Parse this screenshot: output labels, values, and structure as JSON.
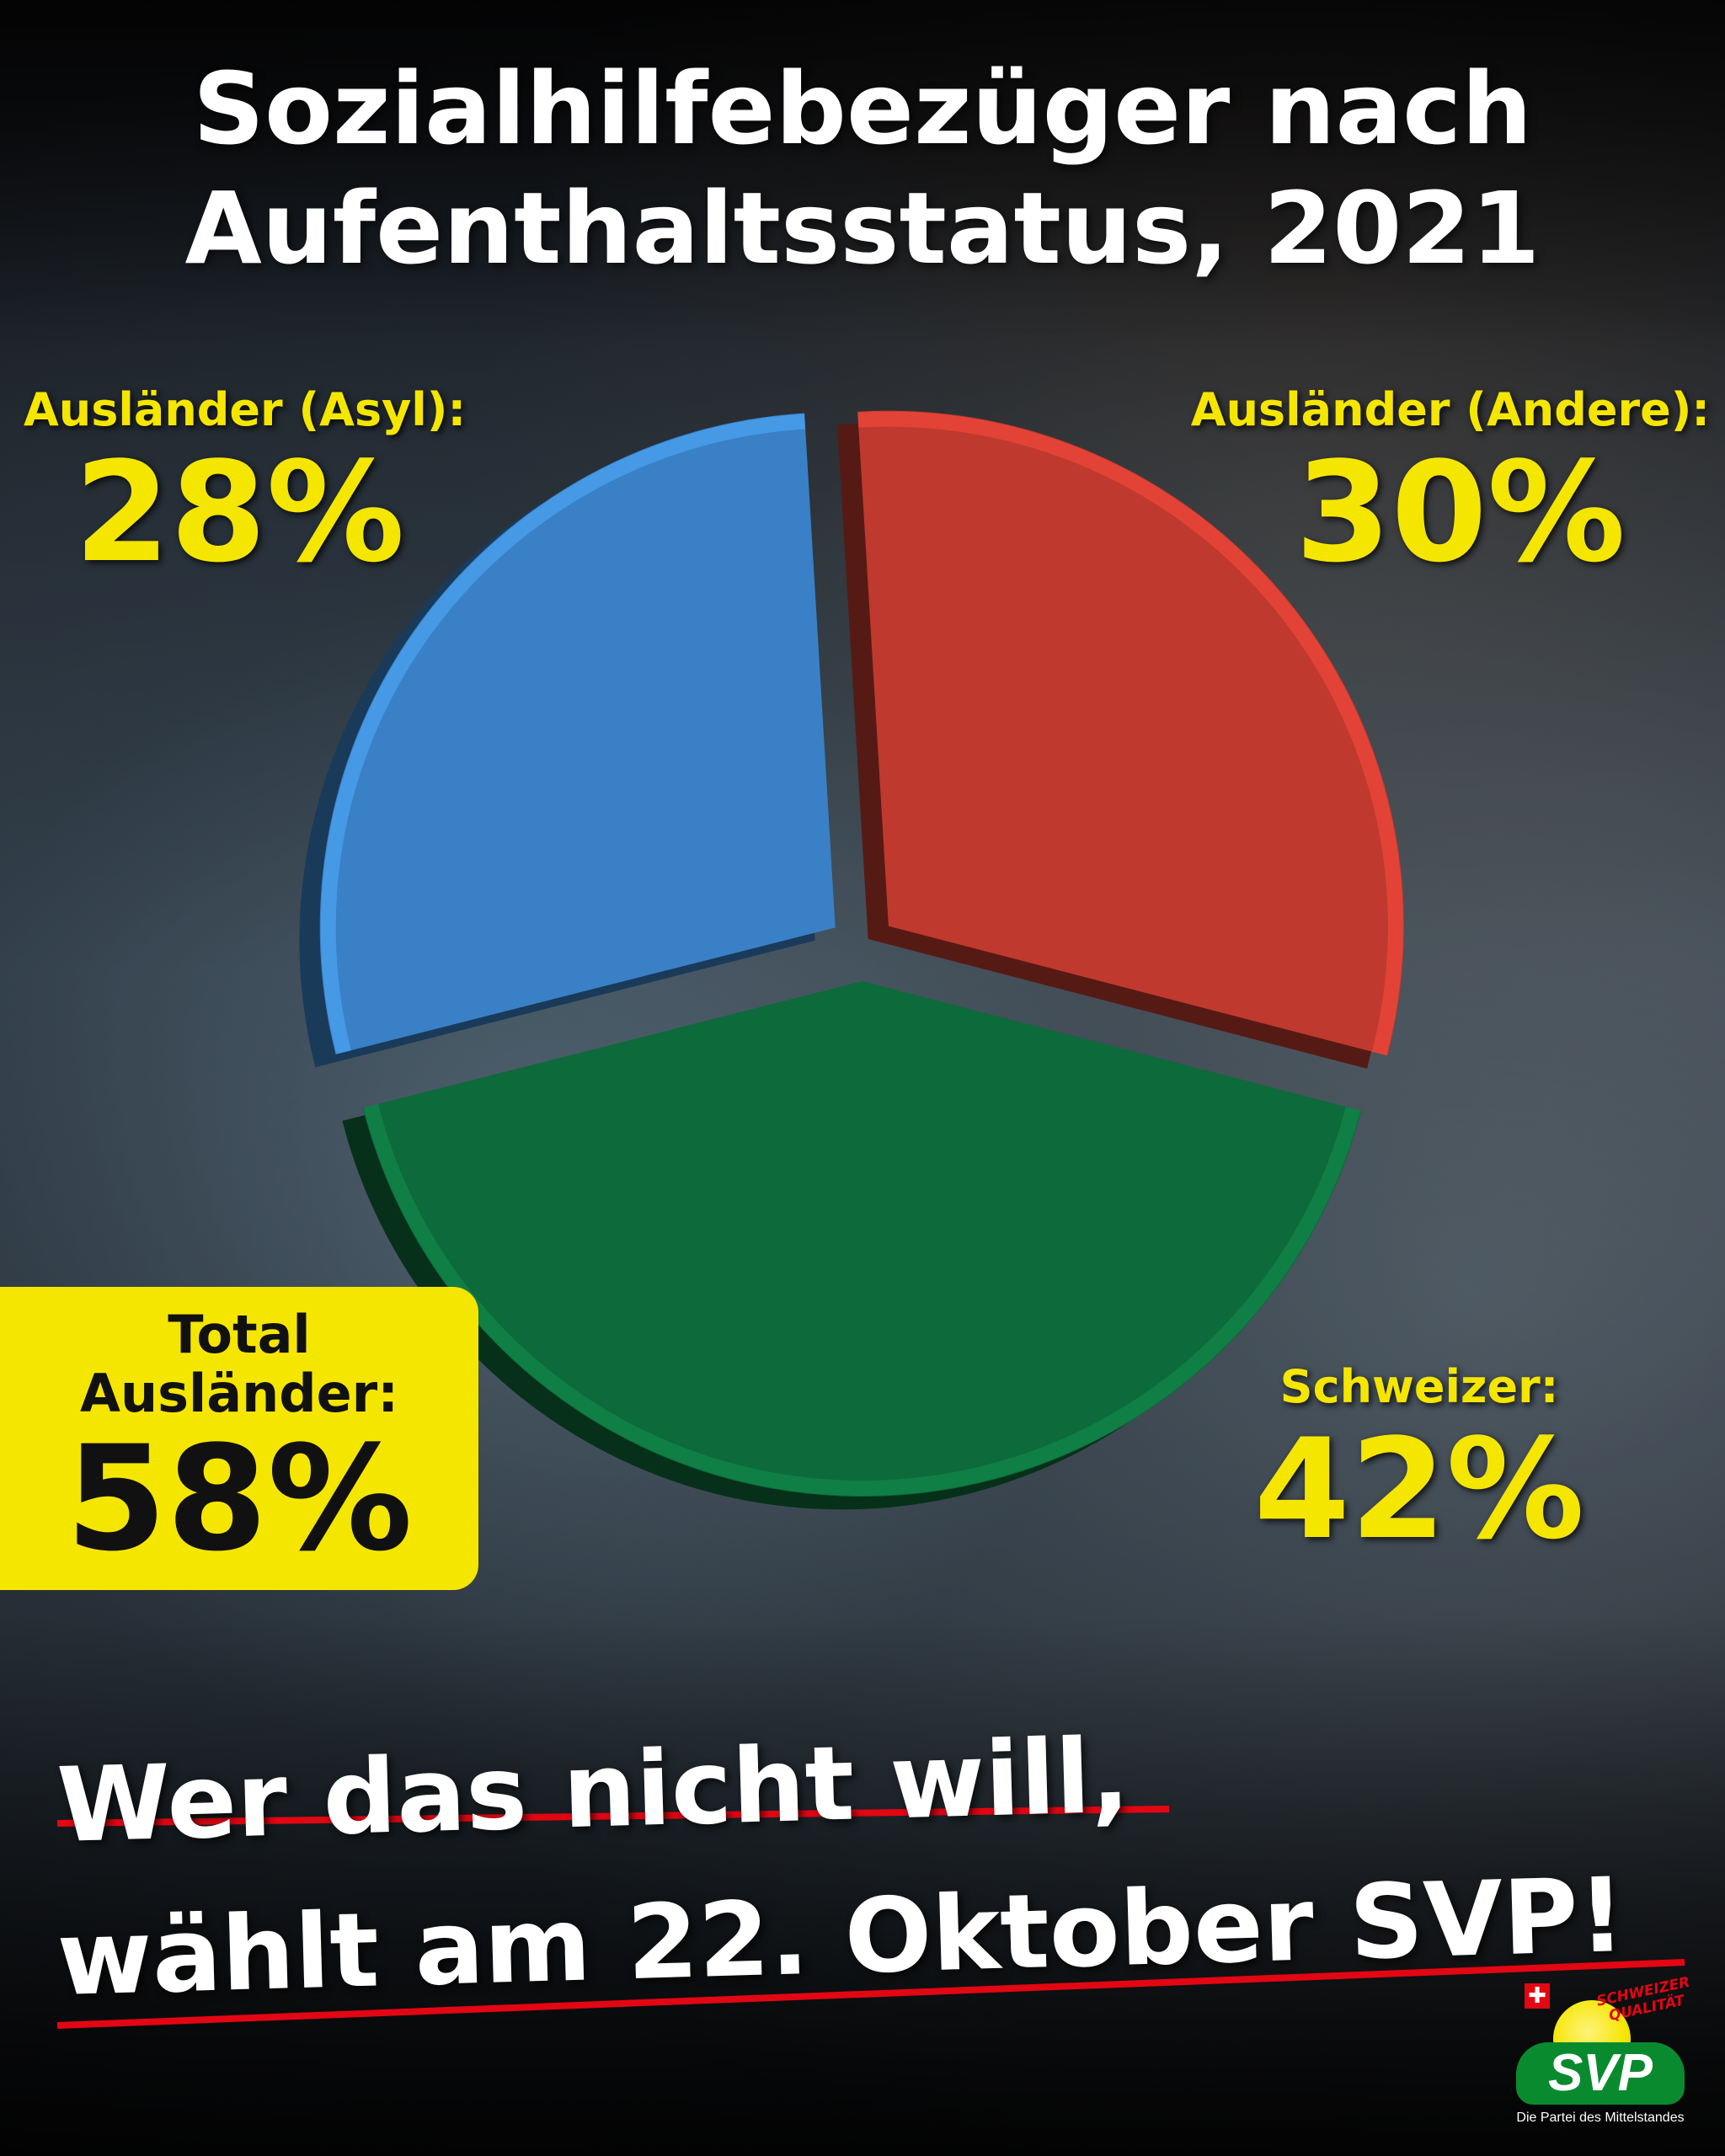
{
  "title": {
    "line1": "Sozialhilfebezüger nach",
    "line2": "Aufenthaltsstatus, 2021"
  },
  "chart_data": {
    "type": "pie",
    "title": "Sozialhilfebezüger nach Aufenthaltsstatus, 2021",
    "labels": [
      "Ausländer (Andere):",
      "Schweizer:",
      "Ausländer (Asyl):"
    ],
    "values": [
      30,
      42,
      28
    ],
    "value_labels": [
      "30%",
      "42%",
      "28%"
    ],
    "colors": [
      "#c0392e",
      "#0d6a3a",
      "#3a80c6"
    ],
    "exploded": true,
    "style": "3d"
  },
  "labels": {
    "asyl": {
      "name": "Ausländer (Asyl):",
      "pct": "28%"
    },
    "andere": {
      "name": "Ausländer (Andere):",
      "pct": "30%"
    },
    "schweizer": {
      "name": "Schweizer:",
      "pct": "42%"
    }
  },
  "total_box": {
    "line1": "Total",
    "line2": "Ausländer:",
    "pct": "58%"
  },
  "slogan": {
    "line1": "Wer das nicht will,",
    "line2": "wählt am 22. Oktober SVP!"
  },
  "logo": {
    "flag": "✚",
    "badge": "SCHWEIZER QUALITÄT",
    "name": "SVP",
    "tagline": "Die Partei des Mittelstandes"
  },
  "colors": {
    "accent_yellow": "#f5e600",
    "underline_red": "#e30613",
    "svp_green": "#0a8a2e"
  }
}
